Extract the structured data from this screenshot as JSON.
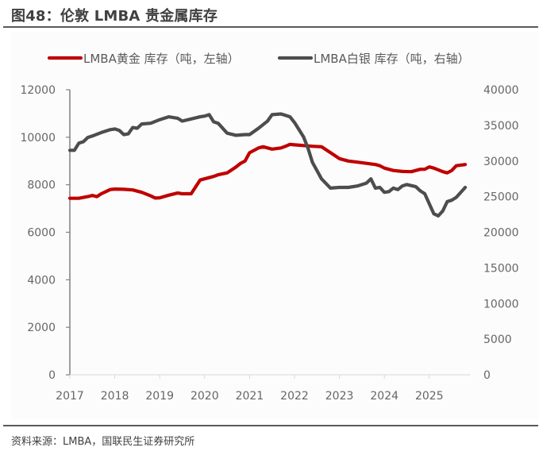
{
  "header": {
    "title": "图48：伦敦 LMBA 贵金属库存"
  },
  "footer": {
    "source": "资料来源：LMBA，国联民生证券研究所"
  },
  "chart_data": {
    "type": "line",
    "title": "伦敦 LMBA 贵金属库存",
    "xlabel": "",
    "x_ticks": [
      "2017",
      "2018",
      "2019",
      "2020",
      "2021",
      "2022",
      "2023",
      "2024",
      "2025"
    ],
    "xlim": [
      2017.0,
      2026.5
    ],
    "y_left": {
      "label": "吨",
      "ticks": [
        0,
        2000,
        4000,
        6000,
        8000,
        10000,
        12000
      ],
      "ylim": [
        0,
        12000
      ]
    },
    "y_right": {
      "label": "吨",
      "ticks": [
        0,
        5000,
        10000,
        15000,
        20000,
        25000,
        30000,
        35000,
        40000
      ],
      "ylim": [
        0,
        40000
      ]
    },
    "legend_position": "top",
    "grid": false,
    "series": [
      {
        "name": "LMBA黄金 库存（吨，左轴）",
        "axis": "left",
        "color": "#C00000",
        "x": [
          2017.0,
          2017.2,
          2017.4,
          2017.5,
          2017.6,
          2017.7,
          2017.9,
          2018.0,
          2018.2,
          2018.4,
          2018.6,
          2018.8,
          2018.9,
          2019.0,
          2019.2,
          2019.4,
          2019.5,
          2019.7,
          2019.9,
          2020.0,
          2020.2,
          2020.3,
          2020.5,
          2020.7,
          2020.8,
          2020.9,
          2021.0,
          2021.2,
          2021.3,
          2021.5,
          2021.7,
          2021.8,
          2021.9,
          2022.0,
          2022.2,
          2022.4,
          2022.6,
          2022.8,
          2023.0,
          2023.2,
          2023.4,
          2023.6,
          2023.8,
          2023.9,
          2024.0,
          2024.2,
          2024.4,
          2024.6,
          2024.7,
          2024.8,
          2024.9,
          2025.0,
          2025.1,
          2025.3,
          2025.4,
          2025.5,
          2025.6,
          2025.8
        ],
        "values": [
          7430,
          7430,
          7500,
          7550,
          7500,
          7620,
          7800,
          7820,
          7810,
          7780,
          7680,
          7530,
          7440,
          7450,
          7560,
          7650,
          7620,
          7620,
          8200,
          8250,
          8350,
          8420,
          8500,
          8750,
          8900,
          9000,
          9350,
          9550,
          9600,
          9500,
          9550,
          9620,
          9700,
          9680,
          9650,
          9620,
          9600,
          9350,
          9100,
          9000,
          8950,
          8900,
          8850,
          8800,
          8700,
          8600,
          8560,
          8550,
          8600,
          8650,
          8650,
          8750,
          8700,
          8550,
          8500,
          8600,
          8800,
          8850
        ]
      },
      {
        "name": "LMBA白银 库存（吨，右轴）",
        "axis": "right",
        "color": "#4D4D4D",
        "x": [
          2017.0,
          2017.1,
          2017.2,
          2017.3,
          2017.4,
          2017.5,
          2017.7,
          2017.9,
          2018.0,
          2018.1,
          2018.2,
          2018.3,
          2018.4,
          2018.5,
          2018.6,
          2018.8,
          2019.0,
          2019.2,
          2019.4,
          2019.5,
          2019.7,
          2019.9,
          2020.0,
          2020.1,
          2020.2,
          2020.3,
          2020.5,
          2020.7,
          2020.9,
          2021.0,
          2021.2,
          2021.4,
          2021.5,
          2021.7,
          2021.8,
          2021.9,
          2022.0,
          2022.2,
          2022.3,
          2022.4,
          2022.6,
          2022.8,
          2023.0,
          2023.2,
          2023.4,
          2023.6,
          2023.7,
          2023.8,
          2023.9,
          2024.0,
          2024.1,
          2024.2,
          2024.3,
          2024.4,
          2024.5,
          2024.7,
          2024.8,
          2024.9,
          2025.0,
          2025.1,
          2025.2,
          2025.3,
          2025.4,
          2025.5,
          2025.6,
          2025.8
        ],
        "values": [
          31500,
          31500,
          32500,
          32700,
          33300,
          33500,
          34000,
          34400,
          34500,
          34300,
          33700,
          33800,
          34700,
          34600,
          35200,
          35300,
          35800,
          36200,
          36000,
          35600,
          35900,
          36200,
          36300,
          36500,
          35500,
          35300,
          33900,
          33600,
          33700,
          33700,
          34600,
          35600,
          36500,
          36600,
          36400,
          36200,
          35400,
          33400,
          31800,
          29800,
          27500,
          26200,
          26300,
          26300,
          26500,
          26900,
          27500,
          26200,
          26300,
          25600,
          25700,
          26200,
          26000,
          26500,
          26700,
          26400,
          25800,
          25400,
          24000,
          22600,
          22300,
          23000,
          24300,
          24500,
          24900,
          26300
        ]
      }
    ]
  }
}
